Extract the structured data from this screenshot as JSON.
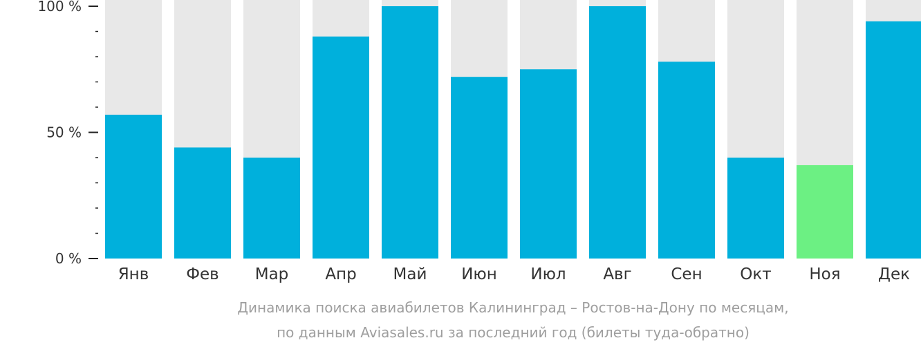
{
  "chart_data": {
    "type": "bar",
    "categories": [
      "Янв",
      "Фев",
      "Мар",
      "Апр",
      "Май",
      "Июн",
      "Июл",
      "Авг",
      "Сен",
      "Окт",
      "Ноя",
      "Дек"
    ],
    "values": [
      57,
      44,
      40,
      88,
      100,
      72,
      75,
      100,
      78,
      40,
      37,
      94
    ],
    "highlight_index": 10,
    "ylim": [
      0,
      100
    ],
    "yticks": [
      "0 %",
      "50 %",
      "100 %"
    ],
    "ytick_values": [
      0,
      50,
      100
    ],
    "minor_tick_step": 10,
    "grid": false,
    "colors": {
      "bar": "#00b0dc",
      "highlight": "#6cf083",
      "track": "#e8e8e8",
      "axis": "#222222"
    }
  },
  "caption": {
    "line1": "Динамика поиска авиабилетов Калининград – Ростов-на-Дону по месяцам,",
    "line2": "по данным Aviasales.ru за последний год (билеты туда-обратно)"
  }
}
